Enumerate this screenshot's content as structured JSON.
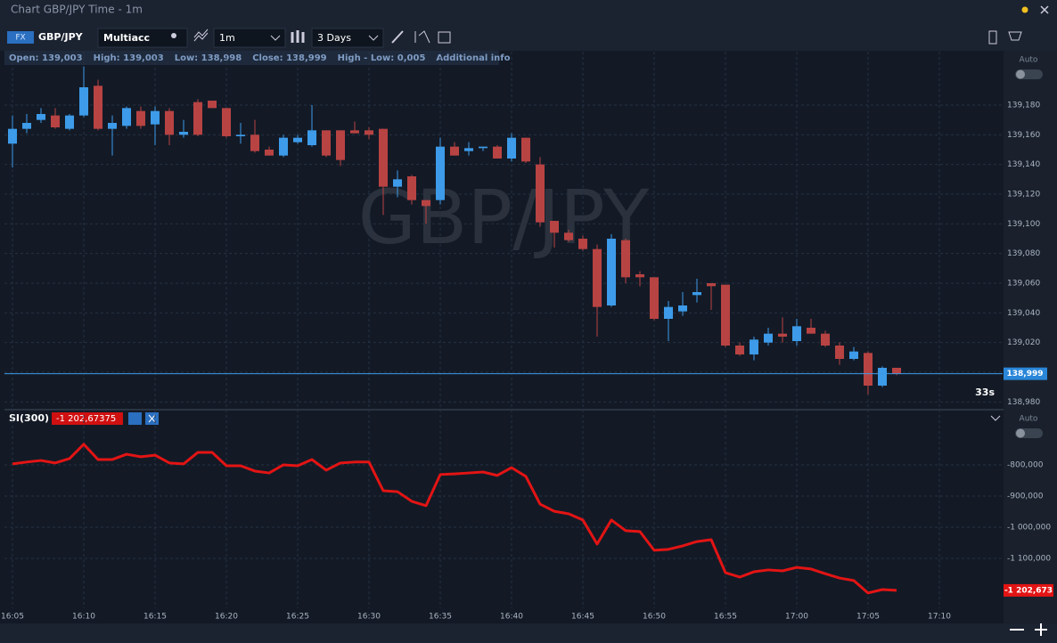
{
  "window": {
    "title": "Chart GBP/JPY Time - 1m"
  },
  "toolbar": {
    "badge": "FX",
    "symbol": "GBP/JPY",
    "account": "Multiacc",
    "timeframe": "1m",
    "range": "3 Days"
  },
  "info_bar": {
    "items": [
      "Open: 139,003",
      "High: 139,003",
      "Low: 138,998",
      "Close: 138,999",
      "High - Low: 0,005"
    ],
    "more": "Additional info"
  },
  "indicator": {
    "name": "SI(300)",
    "value": "-1 202,67375"
  },
  "auto_labels": [
    "Auto",
    "Auto"
  ],
  "countdown": "33s",
  "chart_data": [
    {
      "type": "candlestick",
      "watermark": "GBP/JPY",
      "categories": [
        "16:05",
        null,
        null,
        null,
        null,
        "16:10",
        null,
        null,
        null,
        null,
        "16:15",
        null,
        null,
        null,
        null,
        "16:20",
        null,
        null,
        null,
        null,
        "16:25",
        null,
        null,
        null,
        null,
        "16:30",
        null,
        null,
        null,
        null,
        "16:35",
        null,
        null,
        null,
        null,
        "16:40",
        null,
        null,
        null,
        null,
        "16:45",
        null,
        null,
        null,
        null,
        "16:50",
        null,
        null,
        null,
        null,
        "16:55",
        null,
        null,
        null,
        null,
        "17:00",
        null,
        null,
        null,
        null,
        "17:05",
        null,
        null,
        null,
        null,
        "17:10"
      ],
      "open": [
        139.154,
        139.164,
        139.17,
        139.173,
        139.164,
        139.173,
        139.193,
        139.164,
        139.166,
        139.176,
        139.167,
        139.176,
        139.16,
        139.182,
        139.183,
        139.178,
        139.159,
        139.16,
        139.15,
        139.146,
        139.155,
        139.153,
        139.163,
        139.163,
        139.163,
        139.163,
        139.164,
        139.125,
        139.132,
        139.116,
        139.116,
        139.152,
        139.149,
        139.151,
        139.152,
        139.144,
        139.158,
        139.14,
        139.102,
        139.094,
        139.09,
        139.083,
        139.045,
        139.089,
        139.066,
        139.064,
        139.036,
        139.041,
        139.052,
        139.06,
        139.059,
        139.018,
        139.012,
        139.02,
        139.026,
        139.021,
        139.03,
        139.026,
        139.018,
        139.009,
        139.013,
        138.991,
        139.003,
        null,
        null,
        null
      ],
      "high": [
        139.173,
        139.174,
        139.178,
        139.178,
        139.174,
        139.206,
        139.197,
        139.173,
        139.179,
        139.179,
        139.179,
        139.178,
        139.17,
        139.184,
        139.183,
        139.178,
        139.168,
        139.17,
        139.152,
        139.16,
        139.16,
        139.18,
        139.163,
        139.163,
        139.169,
        139.165,
        139.164,
        139.136,
        139.133,
        139.116,
        139.158,
        139.155,
        139.155,
        139.152,
        139.153,
        139.161,
        139.158,
        139.145,
        139.102,
        139.096,
        139.092,
        139.086,
        139.093,
        139.09,
        139.068,
        139.064,
        139.048,
        139.054,
        139.063,
        139.06,
        139.059,
        139.02,
        139.024,
        139.03,
        139.037,
        139.036,
        139.036,
        139.028,
        139.02,
        139.017,
        139.014,
        139.004,
        139.003,
        null,
        null,
        null
      ],
      "low": [
        139.138,
        139.161,
        139.168,
        139.164,
        139.163,
        139.172,
        139.163,
        139.146,
        139.164,
        139.164,
        139.153,
        139.153,
        139.158,
        139.159,
        139.178,
        139.158,
        139.154,
        139.148,
        139.146,
        139.145,
        139.154,
        139.152,
        139.145,
        139.139,
        139.161,
        139.157,
        139.106,
        139.118,
        139.113,
        139.1,
        139.113,
        139.146,
        139.146,
        139.149,
        139.144,
        139.142,
        139.141,
        139.098,
        139.084,
        139.088,
        139.082,
        139.024,
        139.044,
        139.06,
        139.058,
        139.035,
        139.021,
        139.038,
        139.047,
        139.042,
        139.017,
        139.011,
        139.008,
        139.018,
        139.02,
        139.018,
        139.026,
        139.017,
        139.005,
        139.008,
        138.985,
        138.99,
        138.998,
        null,
        null,
        null
      ],
      "close": [
        139.164,
        139.168,
        139.174,
        139.165,
        139.173,
        139.192,
        139.164,
        139.168,
        139.178,
        139.166,
        139.176,
        139.16,
        139.162,
        139.16,
        139.178,
        139.159,
        139.16,
        139.149,
        139.146,
        139.158,
        139.158,
        139.163,
        139.146,
        139.143,
        139.161,
        139.16,
        139.125,
        139.13,
        139.116,
        139.112,
        139.152,
        139.146,
        139.151,
        139.152,
        139.144,
        139.158,
        139.142,
        139.101,
        139.094,
        139.089,
        139.083,
        139.044,
        139.09,
        139.064,
        139.064,
        139.036,
        139.044,
        139.045,
        139.054,
        139.058,
        139.018,
        139.012,
        139.022,
        139.026,
        139.024,
        139.031,
        139.026,
        139.018,
        139.009,
        139.014,
        138.991,
        139.003,
        138.999,
        null,
        null,
        null
      ],
      "up_color": "#3d9be9",
      "down_color": "#b84343",
      "ylim": [
        138.976,
        139.216
      ],
      "yticks": [
        {
          "value": 139.18,
          "label": "139,180"
        },
        {
          "value": 139.16,
          "label": "139,160"
        },
        {
          "value": 139.14,
          "label": "139,140"
        },
        {
          "value": 139.12,
          "label": "139,120"
        },
        {
          "value": 139.1,
          "label": "139,100"
        },
        {
          "value": 139.08,
          "label": "139,080"
        },
        {
          "value": 139.06,
          "label": "139,060"
        },
        {
          "value": 139.04,
          "label": "139,040"
        },
        {
          "value": 139.02,
          "label": "139,020"
        },
        {
          "value": 139.0,
          "label": "139,000"
        },
        {
          "value": 138.98,
          "label": "138,980"
        }
      ],
      "grid": true,
      "last_price": {
        "value": 138.999,
        "label": "138,999"
      }
    },
    {
      "type": "line",
      "color": "#e31414",
      "values": [
        -797000,
        -791000,
        -786000,
        -794000,
        -780000,
        -734000,
        -783000,
        -783000,
        -766000,
        -774000,
        -769000,
        -794000,
        -797000,
        -760000,
        -760000,
        -803000,
        -803000,
        -820000,
        -826000,
        -800000,
        -803000,
        -783000,
        -817000,
        -794000,
        -791000,
        -791000,
        -883000,
        -886000,
        -917000,
        -931000,
        -831000,
        -829000,
        -826000,
        -823000,
        -834000,
        -809000,
        -837000,
        -926000,
        -949000,
        -957000,
        -977000,
        -1054000,
        -977000,
        -1011000,
        -1014000,
        -1074000,
        -1071000,
        -1060000,
        -1046000,
        -1040000,
        -1146000,
        -1160000,
        -1143000,
        -1137000,
        -1140000,
        -1129000,
        -1134000,
        -1149000,
        -1163000,
        -1171000,
        -1211000,
        -1200000,
        -1202673,
        null,
        null,
        null
      ],
      "ylim": [
        -1260000,
        -683000
      ],
      "yticks": [
        {
          "value": -800000,
          "label": "-800,000"
        },
        {
          "value": -900000,
          "label": "-900,000"
        },
        {
          "value": -1000000,
          "label": "-1 000,000"
        },
        {
          "value": -1100000,
          "label": "-1 100,000"
        }
      ],
      "grid": true,
      "last_value": {
        "value": -1202673,
        "label": "-1 202,673"
      }
    }
  ]
}
